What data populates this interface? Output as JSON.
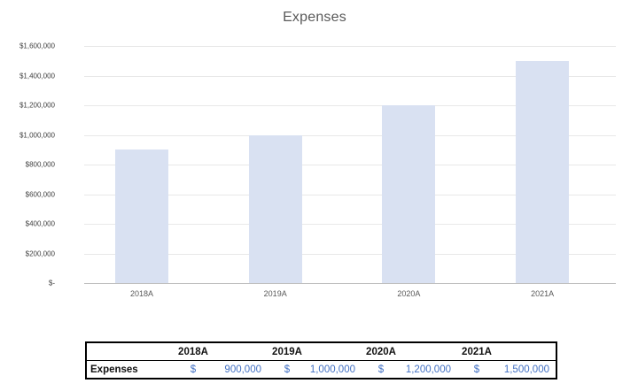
{
  "chart_data": {
    "type": "bar",
    "title": "Expenses",
    "categories": [
      "2018A",
      "2019A",
      "2020A",
      "2021A"
    ],
    "values": [
      900000,
      1000000,
      1200000,
      1500000
    ],
    "xlabel": "",
    "ylabel": "",
    "ylim": [
      0,
      1600000
    ],
    "ytick_step": 200000,
    "ytick_labels_top_to_bottom": [
      "$1,600,000",
      "$1,400,000",
      "$1,200,000",
      "$1,000,000",
      "$800,000",
      "$600,000",
      "$400,000",
      "$200,000",
      "$-"
    ],
    "grid": true,
    "legend": false,
    "bar_color": "#d9e1f2"
  },
  "table": {
    "row_label": "Expenses",
    "headers": [
      "2018A",
      "2019A",
      "2020A",
      "2021A"
    ],
    "currency_symbol": "$",
    "values": [
      "900,000",
      "1,000,000",
      "1,200,000",
      "1,500,000"
    ]
  },
  "colors": {
    "background": "#ffffff",
    "bar": "#d9e1f2",
    "title_text": "#595959",
    "gridline": "#e8e8e8",
    "axis_line": "#bfbfbf",
    "y_tick_text": "#404040",
    "x_tick_text": "#595959",
    "table_text": "#111111",
    "table_value_text": "#4472c4",
    "table_border": "#000000"
  }
}
